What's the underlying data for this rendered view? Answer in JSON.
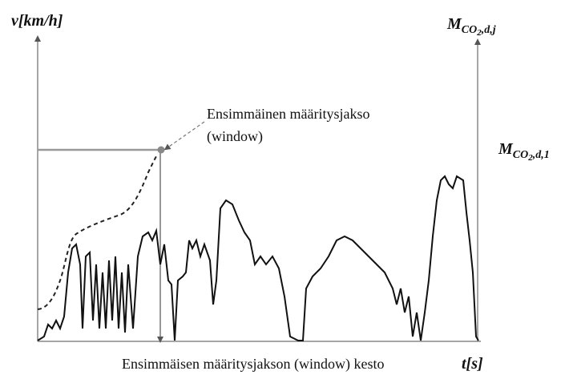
{
  "axes": {
    "y_left": {
      "label": "v[km/h]"
    },
    "y_right": {
      "main": "M",
      "sub": "CO",
      "sub2": "2",
      "sub_rest": ",d,j"
    },
    "x": {
      "label": "t[s]"
    }
  },
  "level_label": {
    "main": "M",
    "sub": "CO",
    "sub2": "2",
    "sub_rest": ",d,1"
  },
  "annotation": {
    "line1": "Ensimmäinen määritysjakso",
    "line2": "(window)"
  },
  "x_caption": "Ensimmäisen määritysjakson (window) kesto"
}
